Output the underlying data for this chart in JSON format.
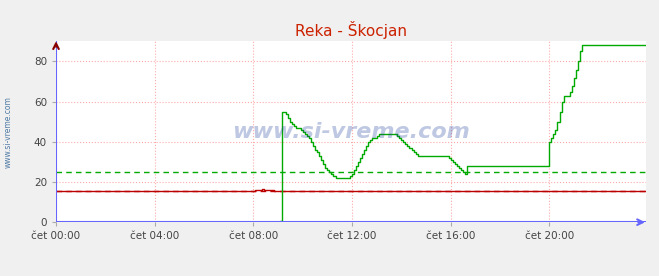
{
  "title": "Reka - Škocjan",
  "background_color": "#f0f0f0",
  "plot_bg_color": "#ffffff",
  "ylim": [
    0,
    90
  ],
  "yticks": [
    0,
    20,
    40,
    60,
    80
  ],
  "xlim": [
    0,
    287
  ],
  "xtick_positions": [
    0,
    48,
    96,
    144,
    192,
    240
  ],
  "xtick_labels": [
    "čet 00:00",
    "čet 04:00",
    "čet 08:00",
    "čet 12:00",
    "čet 16:00",
    "čet 20:00"
  ],
  "avg_temp": 15.5,
  "avg_flow": 25.0,
  "watermark": "www.si-vreme.com",
  "temp_color": "#bb0000",
  "flow_color": "#00aa00",
  "axis_color_x": "#6666ff",
  "axis_color_y": "#880000",
  "grid_color": "#ffaaaa",
  "temp_data": [
    15.5,
    15.5,
    15.5,
    15.5,
    15.5,
    15.5,
    15.5,
    15.5,
    15.5,
    15.5,
    15.5,
    15.5,
    15.5,
    15.5,
    15.5,
    15.5,
    15.5,
    15.5,
    15.5,
    15.5,
    15.5,
    15.5,
    15.5,
    15.5,
    15.5,
    15.5,
    15.5,
    15.5,
    15.5,
    15.5,
    15.5,
    15.5,
    15.5,
    15.5,
    15.5,
    15.5,
    15.5,
    15.5,
    15.5,
    15.5,
    15.5,
    15.5,
    15.5,
    15.5,
    15.5,
    15.5,
    15.5,
    15.5,
    15.5,
    15.5,
    15.5,
    15.5,
    15.5,
    15.5,
    15.5,
    15.5,
    15.5,
    15.5,
    15.5,
    15.5,
    15.5,
    15.5,
    15.5,
    15.5,
    15.5,
    15.5,
    15.5,
    15.5,
    15.5,
    15.5,
    15.5,
    15.5,
    15.5,
    15.5,
    15.5,
    15.5,
    15.5,
    15.5,
    15.5,
    15.5,
    15.5,
    15.5,
    15.5,
    15.5,
    15.5,
    15.5,
    15.5,
    15.5,
    15.5,
    15.5,
    15.5,
    15.5,
    15.5,
    15.5,
    15.5,
    15.5,
    15.6,
    15.8,
    16.0,
    16.2,
    16.3,
    16.2,
    16.1,
    16.0,
    15.9,
    15.8,
    15.7,
    15.6,
    15.5,
    15.5,
    15.5,
    15.5,
    15.5,
    15.5,
    15.5,
    15.5,
    15.5,
    15.5,
    15.5,
    15.5,
    15.5,
    15.5,
    15.5,
    15.5,
    15.5,
    15.5,
    15.5,
    15.5,
    15.5,
    15.5,
    15.5,
    15.5,
    15.5,
    15.5,
    15.5,
    15.5,
    15.5,
    15.5,
    15.5,
    15.5,
    15.5,
    15.5,
    15.5,
    15.5,
    15.5,
    15.5,
    15.5,
    15.5,
    15.5,
    15.5,
    15.5,
    15.5,
    15.5,
    15.5,
    15.5,
    15.5,
    15.5,
    15.5,
    15.5,
    15.5,
    15.5,
    15.5,
    15.5,
    15.5,
    15.5,
    15.5,
    15.5,
    15.5,
    15.5,
    15.5,
    15.5,
    15.5,
    15.5,
    15.5,
    15.5,
    15.5,
    15.5,
    15.5,
    15.5,
    15.5,
    15.5,
    15.5,
    15.5,
    15.5,
    15.5,
    15.5,
    15.5,
    15.5,
    15.5,
    15.5,
    15.5,
    15.5,
    15.5,
    15.5,
    15.5,
    15.5,
    15.5,
    15.5,
    15.5,
    15.5,
    15.5,
    15.5,
    15.5,
    15.5,
    15.5,
    15.5,
    15.5,
    15.5,
    15.5,
    15.5,
    15.5,
    15.5,
    15.5,
    15.5,
    15.5,
    15.5,
    15.5,
    15.5,
    15.5,
    15.5,
    15.5,
    15.5,
    15.5,
    15.5,
    15.5,
    15.5,
    15.5,
    15.5,
    15.5,
    15.5,
    15.5,
    15.5,
    15.5,
    15.5,
    15.5,
    15.5,
    15.5,
    15.5,
    15.5,
    15.5,
    15.5,
    15.5,
    15.5,
    15.5,
    15.5,
    15.5,
    15.5,
    15.5,
    15.5,
    15.5,
    15.5,
    15.5,
    15.5,
    15.5,
    15.5,
    15.5,
    15.5,
    15.5,
    15.5,
    15.5,
    15.5,
    15.5,
    15.5,
    15.5,
    15.5,
    15.5,
    15.5,
    15.5,
    15.5,
    15.5,
    15.5,
    15.5,
    15.5,
    15.5,
    15.5,
    15.5,
    15.5,
    15.5,
    15.5,
    15.5,
    15.5,
    15.5,
    15.5,
    15.5,
    15.5,
    15.5,
    15.5,
    15.5
  ],
  "flow_data": [
    0.0,
    0.0,
    0.0,
    0.0,
    0.0,
    0.0,
    0.0,
    0.0,
    0.0,
    0.0,
    0.0,
    0.0,
    0.0,
    0.0,
    0.0,
    0.0,
    0.0,
    0.0,
    0.0,
    0.0,
    0.0,
    0.0,
    0.0,
    0.0,
    0.0,
    0.0,
    0.0,
    0.0,
    0.0,
    0.0,
    0.0,
    0.0,
    0.0,
    0.0,
    0.0,
    0.0,
    0.0,
    0.0,
    0.0,
    0.0,
    0.0,
    0.0,
    0.0,
    0.0,
    0.0,
    0.0,
    0.0,
    0.0,
    0.0,
    0.0,
    0.0,
    0.0,
    0.0,
    0.0,
    0.0,
    0.0,
    0.0,
    0.0,
    0.0,
    0.0,
    0.0,
    0.0,
    0.0,
    0.0,
    0.0,
    0.0,
    0.0,
    0.0,
    0.0,
    0.0,
    0.0,
    0.0,
    0.0,
    0.0,
    0.0,
    0.0,
    0.0,
    0.0,
    0.0,
    0.0,
    0.0,
    0.0,
    0.0,
    0.0,
    0.0,
    0.0,
    0.0,
    0.0,
    0.0,
    0.0,
    0.0,
    0.0,
    0.0,
    0.0,
    0.0,
    0.0,
    0.0,
    0.0,
    0.0,
    0.0,
    0.0,
    0.0,
    0.0,
    0.0,
    0.0,
    0.0,
    0.0,
    0.0,
    0.0,
    0.5,
    55.0,
    55.0,
    54.0,
    52.0,
    50.0,
    49.0,
    48.0,
    47.0,
    47.0,
    46.0,
    45.0,
    44.0,
    43.0,
    42.0,
    40.0,
    38.0,
    36.0,
    35.0,
    33.0,
    31.0,
    29.0,
    27.0,
    26.0,
    25.0,
    24.0,
    23.0,
    22.0,
    22.0,
    22.0,
    22.0,
    22.0,
    22.0,
    22.0,
    23.0,
    24.0,
    26.0,
    28.0,
    30.0,
    32.0,
    34.0,
    36.0,
    38.0,
    40.0,
    41.0,
    42.0,
    42.0,
    43.0,
    44.0,
    44.0,
    44.0,
    44.0,
    44.0,
    44.0,
    44.0,
    44.0,
    44.0,
    43.0,
    42.0,
    41.0,
    40.0,
    39.0,
    38.0,
    37.0,
    36.0,
    35.0,
    34.0,
    33.0,
    33.0,
    33.0,
    33.0,
    33.0,
    33.0,
    33.0,
    33.0,
    33.0,
    33.0,
    33.0,
    33.0,
    33.0,
    33.0,
    33.0,
    32.0,
    31.0,
    30.0,
    29.0,
    28.0,
    27.0,
    26.0,
    25.0,
    24.0,
    28.0,
    28.0,
    28.0,
    28.0,
    28.0,
    28.0,
    28.0,
    28.0,
    28.0,
    28.0,
    28.0,
    28.0,
    28.0,
    28.0,
    28.0,
    28.0,
    28.0,
    28.0,
    28.0,
    28.0,
    28.0,
    28.0,
    28.0,
    28.0,
    28.0,
    28.0,
    28.0,
    28.0,
    28.0,
    28.0,
    28.0,
    28.0,
    28.0,
    28.0,
    28.0,
    28.0,
    28.0,
    28.0,
    28.0,
    28.0,
    40.0,
    42.0,
    44.0,
    46.0,
    50.0,
    55.0,
    60.0,
    63.0,
    63.0,
    63.0,
    65.0,
    68.0,
    72.0,
    76.0,
    80.0,
    85.0,
    88.0,
    88.0,
    88.0,
    88.0,
    88.0,
    88.0,
    88.0,
    88.0,
    88.0,
    88.0,
    88.0,
    88.0,
    88.0,
    88.0,
    88.0,
    88.0,
    88.0,
    88.0,
    88.0,
    88.0,
    88.0,
    88.0,
    88.0,
    88.0,
    88.0,
    88.0,
    88.0,
    88.0,
    88.0,
    88.0,
    88.0,
    88.0
  ]
}
